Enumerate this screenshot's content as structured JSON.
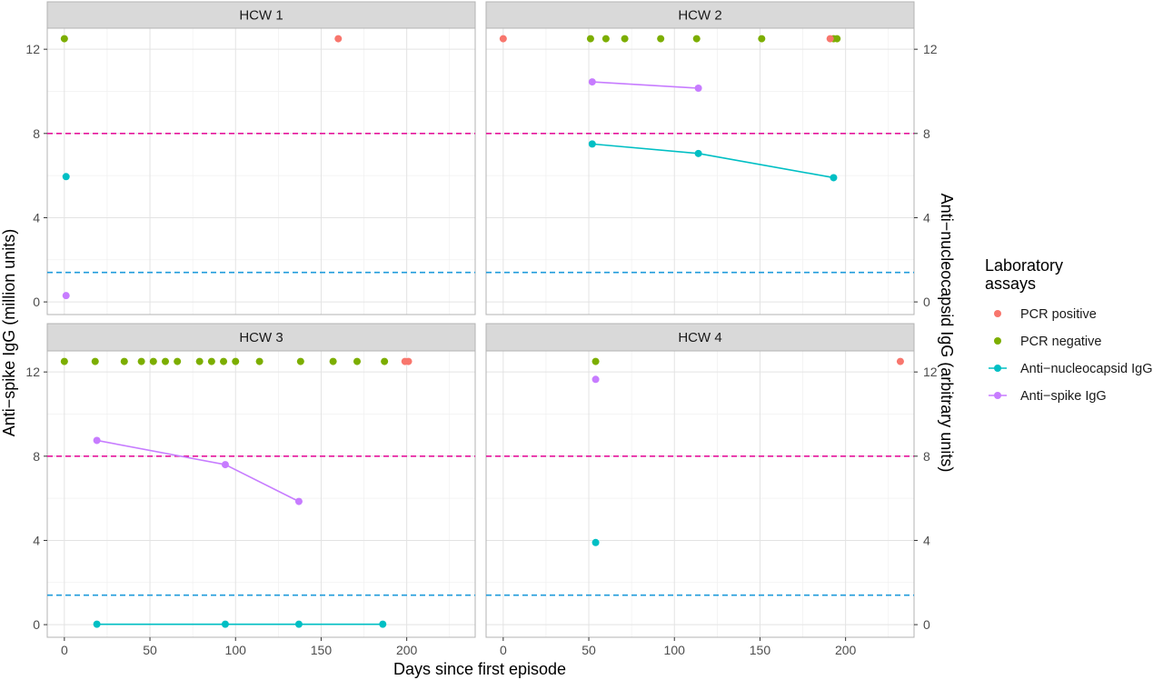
{
  "chart_data": {
    "type": "scatter",
    "facets": [
      "HCW 1",
      "HCW 2",
      "HCW 3",
      "HCW 4"
    ],
    "xlabel": "Days since first episode",
    "ylabel_left": "Anti−spike IgG (million units)",
    "ylabel_right": "Anti−nucleocapsid IgG (arbitrary units)",
    "xlim": [
      -10,
      240
    ],
    "ylim": [
      -0.6,
      13.0
    ],
    "x_ticks": [
      "0",
      "50",
      "100",
      "150",
      "200"
    ],
    "x_tick_values": [
      0,
      50,
      100,
      150,
      200
    ],
    "y_ticks": [
      "0",
      "4",
      "8",
      "12"
    ],
    "y_tick_values": [
      0,
      4,
      8,
      12
    ],
    "grid": true,
    "reference_lines": [
      {
        "y": 8.0,
        "color": "#E5159B",
        "style": "dashed"
      },
      {
        "y": 1.4,
        "color": "#1F9BDB",
        "style": "dashed"
      }
    ],
    "legend": {
      "title_lines": [
        "Laboratory",
        "assays"
      ],
      "placement": "right",
      "items": [
        {
          "label": "PCR positive",
          "color": "#F8766D",
          "kind": "point"
        },
        {
          "label": "PCR negative",
          "color": "#7CAE00",
          "kind": "point"
        },
        {
          "label": "Anti−nucleocapsid IgG",
          "color": "#00BFC4",
          "kind": "line"
        },
        {
          "label": "Anti−spike IgG",
          "color": "#C77CFF",
          "kind": "line"
        }
      ]
    },
    "panels": [
      {
        "name": "HCW 1",
        "pcr_positive": [
          160
        ],
        "pcr_negative": [
          0
        ],
        "pcr_y": 12.5,
        "anti_nucleocapsid": [
          {
            "x": 1,
            "y": 5.95
          }
        ],
        "anti_spike": [
          {
            "x": 1,
            "y": 0.3
          }
        ]
      },
      {
        "name": "HCW 2",
        "pcr_positive": [
          0,
          191
        ],
        "pcr_negative": [
          51,
          60,
          71,
          92,
          113,
          151,
          193,
          195
        ],
        "pcr_y": 12.5,
        "anti_nucleocapsid": [
          {
            "x": 52,
            "y": 7.5
          },
          {
            "x": 114,
            "y": 7.05
          },
          {
            "x": 193,
            "y": 5.9
          }
        ],
        "anti_spike": [
          {
            "x": 52,
            "y": 10.45
          },
          {
            "x": 114,
            "y": 10.15
          }
        ]
      },
      {
        "name": "HCW 3",
        "pcr_positive": [
          199,
          201
        ],
        "pcr_negative": [
          0,
          18,
          35,
          45,
          52,
          59,
          66,
          79,
          86,
          93,
          100,
          114,
          138,
          157,
          171,
          187
        ],
        "pcr_y": 12.5,
        "anti_nucleocapsid": [
          {
            "x": 19,
            "y": 0.02
          },
          {
            "x": 94,
            "y": 0.02
          },
          {
            "x": 137,
            "y": 0.02
          },
          {
            "x": 186,
            "y": 0.02
          }
        ],
        "anti_spike": [
          {
            "x": 19,
            "y": 8.75
          },
          {
            "x": 94,
            "y": 7.6
          },
          {
            "x": 137,
            "y": 5.85
          }
        ]
      },
      {
        "name": "HCW 4",
        "pcr_positive": [
          232
        ],
        "pcr_negative": [
          54
        ],
        "pcr_y": 12.5,
        "anti_nucleocapsid": [
          {
            "x": 54,
            "y": 3.9
          }
        ],
        "anti_spike": [
          {
            "x": 54,
            "y": 11.65
          }
        ]
      }
    ]
  }
}
